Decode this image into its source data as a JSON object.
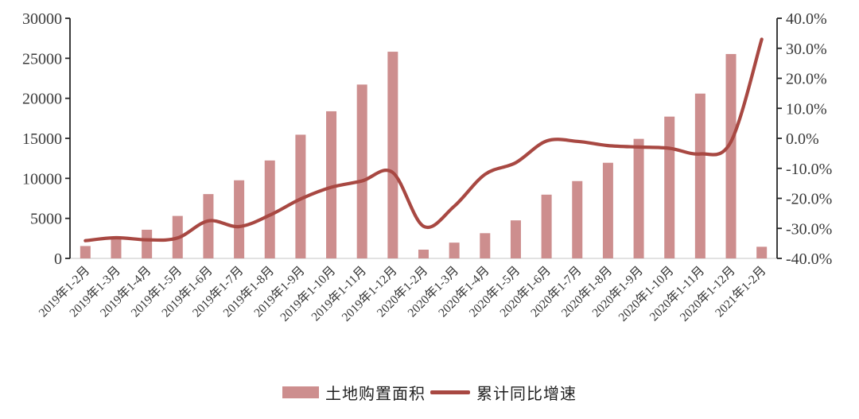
{
  "chart_data": {
    "type": "bar+line",
    "title": "",
    "categories": [
      "2019年1-2月",
      "2019年1-3月",
      "2019年1-4月",
      "2019年1-5月",
      "2019年1-6月",
      "2019年1-7月",
      "2019年1-8月",
      "2019年1-9月",
      "2019年1-10月",
      "2019年1-11月",
      "2019年1-12月",
      "2020年1-2月",
      "2020年1-3月",
      "2020年1-4月",
      "2020年1-5月",
      "2020年1-6月",
      "2020年1-7月",
      "2020年1-8月",
      "2020年1-9月",
      "2020年1-10月",
      "2020年1-11月",
      "2020年1-12月",
      "2021年1-2月"
    ],
    "series": [
      {
        "name": "土地购置面积",
        "type": "bar",
        "axis": "left",
        "color": "#CD8E8E",
        "values": [
          1545,
          2543,
          3582,
          5305,
          8035,
          9761,
          12236,
          15454,
          18383,
          21720,
          25822,
          1092,
          1969,
          3151,
          4752,
          7965,
          9659,
          11947,
          14936,
          17715,
          20591,
          25536,
          1453
        ]
      },
      {
        "name": "累计同比增速",
        "type": "line",
        "axis": "right",
        "color": "#A84842",
        "values": [
          -34.1,
          -33.1,
          -33.8,
          -33.2,
          -27.5,
          -29.4,
          -25.6,
          -20.2,
          -16.3,
          -14.2,
          -11.4,
          -29.3,
          -22.6,
          -12.0,
          -8.1,
          -0.9,
          -1.0,
          -2.4,
          -2.9,
          -3.3,
          -5.2,
          -1.1,
          33.0
        ]
      }
    ],
    "left_axis": {
      "min": 0,
      "max": 30000,
      "step": 5000,
      "tick_labels": [
        "0",
        "5000",
        "10000",
        "15000",
        "20000",
        "25000",
        "30000"
      ]
    },
    "right_axis": {
      "min": -40,
      "max": 40,
      "step": 10,
      "tick_labels": [
        "-40.0%",
        "-30.0%",
        "-20.0%",
        "-10.0%",
        "0.0%",
        "10.0%",
        "20.0%",
        "30.0%",
        "40.0%"
      ]
    },
    "grid": false,
    "legend_position": "bottom",
    "axis_text_color": "#3a3a3a",
    "axis_line_color": "#262626",
    "baseline_color": "#d9d9d9"
  }
}
